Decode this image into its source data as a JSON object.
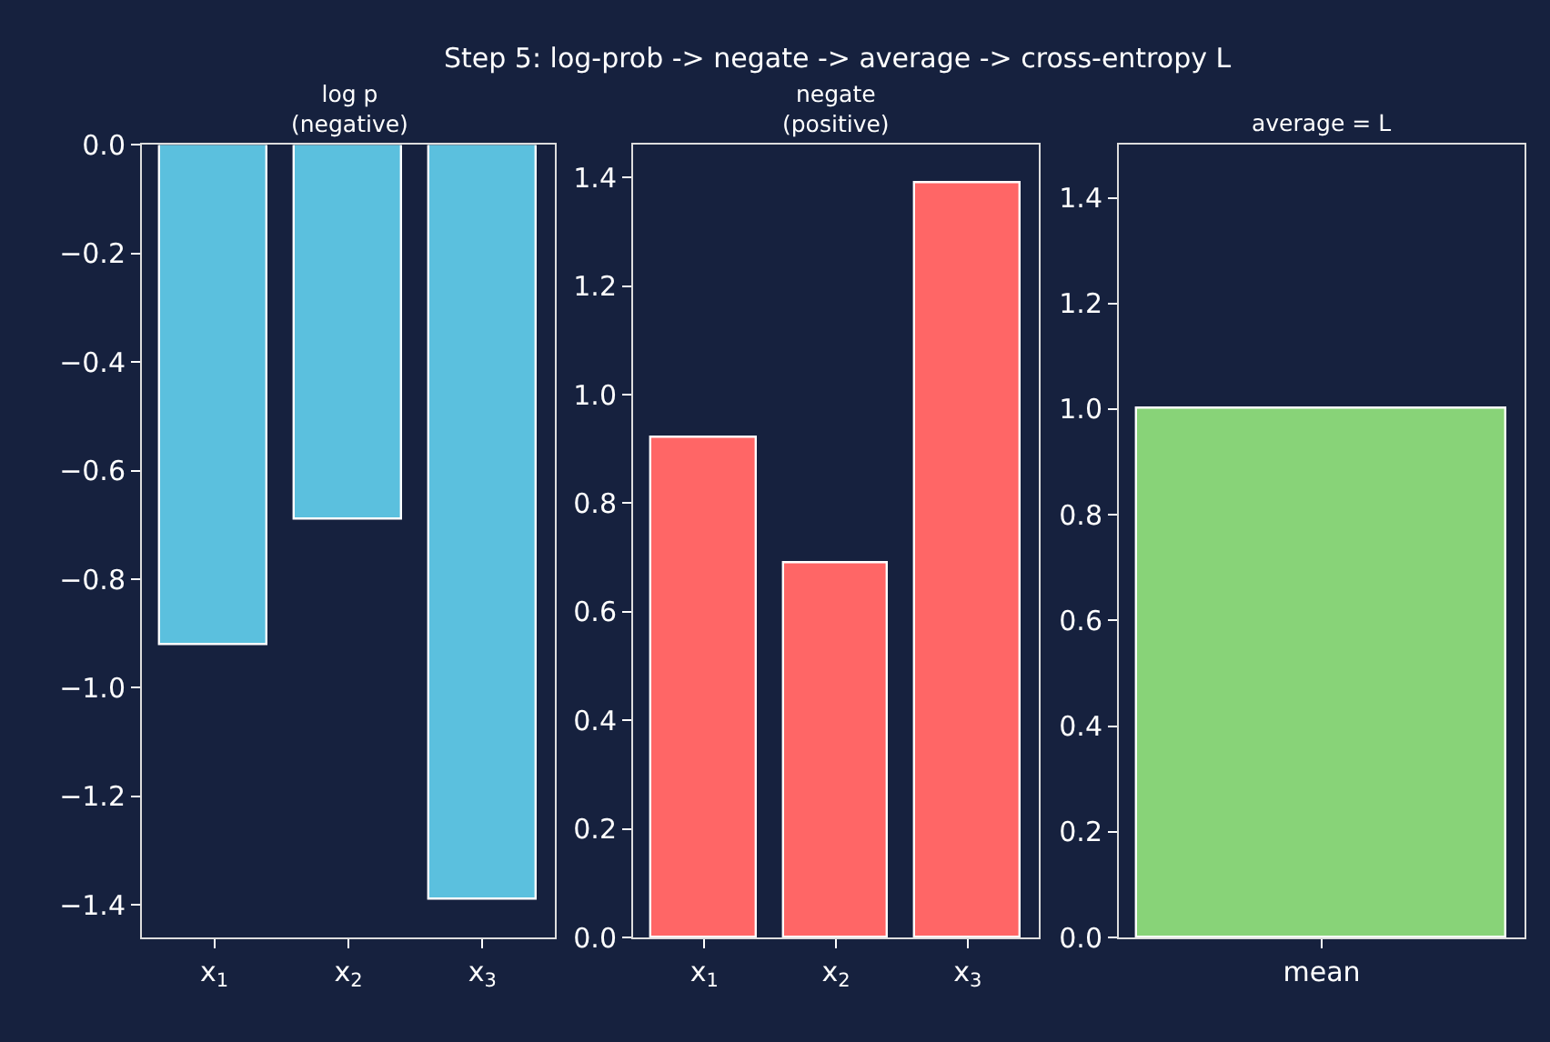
{
  "chart_data": [
    {
      "type": "bar",
      "title": "Step 5: log-prob -> negate -> average -> cross-entropy L",
      "subtitle": "log p\n(negative)",
      "categories": [
        "x$_{1}$",
        "x$_{2}$",
        "x$_{3}$"
      ],
      "values": [
        -0.92,
        -0.69,
        -1.39
      ],
      "color": "#5bc0de",
      "ylim": [
        -1.46,
        0
      ],
      "yticks": [
        {
          "value": 0,
          "label": "0.0"
        },
        {
          "value": -0.2,
          "label": "−0.2"
        },
        {
          "value": -0.4,
          "label": "−0.4"
        },
        {
          "value": -0.6,
          "label": "−0.6"
        },
        {
          "value": -0.8,
          "label": "−0.8"
        },
        {
          "value": -1.0,
          "label": "−1.0"
        },
        {
          "value": -1.2,
          "label": "−1.2"
        },
        {
          "value": -1.4,
          "label": "−1.4"
        }
      ],
      "grid": false
    },
    {
      "type": "bar",
      "subtitle": "negate\n(positive)",
      "categories": [
        "x$_{1}$",
        "x$_{2}$",
        "x$_{3}$"
      ],
      "values": [
        0.92,
        0.69,
        1.39
      ],
      "color": "#ff6666",
      "ylim": [
        0,
        1.46
      ],
      "yticks": [
        {
          "value": 0,
          "label": "0.0"
        },
        {
          "value": 0.2,
          "label": "0.2"
        },
        {
          "value": 0.4,
          "label": "0.4"
        },
        {
          "value": 0.6,
          "label": "0.6"
        },
        {
          "value": 0.8,
          "label": "0.8"
        },
        {
          "value": 1.0,
          "label": "1.0"
        },
        {
          "value": 1.2,
          "label": "1.2"
        },
        {
          "value": 1.4,
          "label": "1.4"
        }
      ],
      "grid": false
    },
    {
      "type": "bar",
      "subtitle": "average = L",
      "categories": [
        "mean"
      ],
      "values": [
        1.0
      ],
      "color": "#88d378",
      "ylim": [
        0,
        1.5
      ],
      "yticks": [
        {
          "value": 0,
          "label": "0.0"
        },
        {
          "value": 0.2,
          "label": "0.2"
        },
        {
          "value": 0.4,
          "label": "0.4"
        },
        {
          "value": 0.6,
          "label": "0.6"
        },
        {
          "value": 0.8,
          "label": "0.8"
        },
        {
          "value": 1.0,
          "label": "1.0"
        },
        {
          "value": 1.2,
          "label": "1.2"
        },
        {
          "value": 1.4,
          "label": "1.4"
        }
      ],
      "grid": false
    }
  ]
}
